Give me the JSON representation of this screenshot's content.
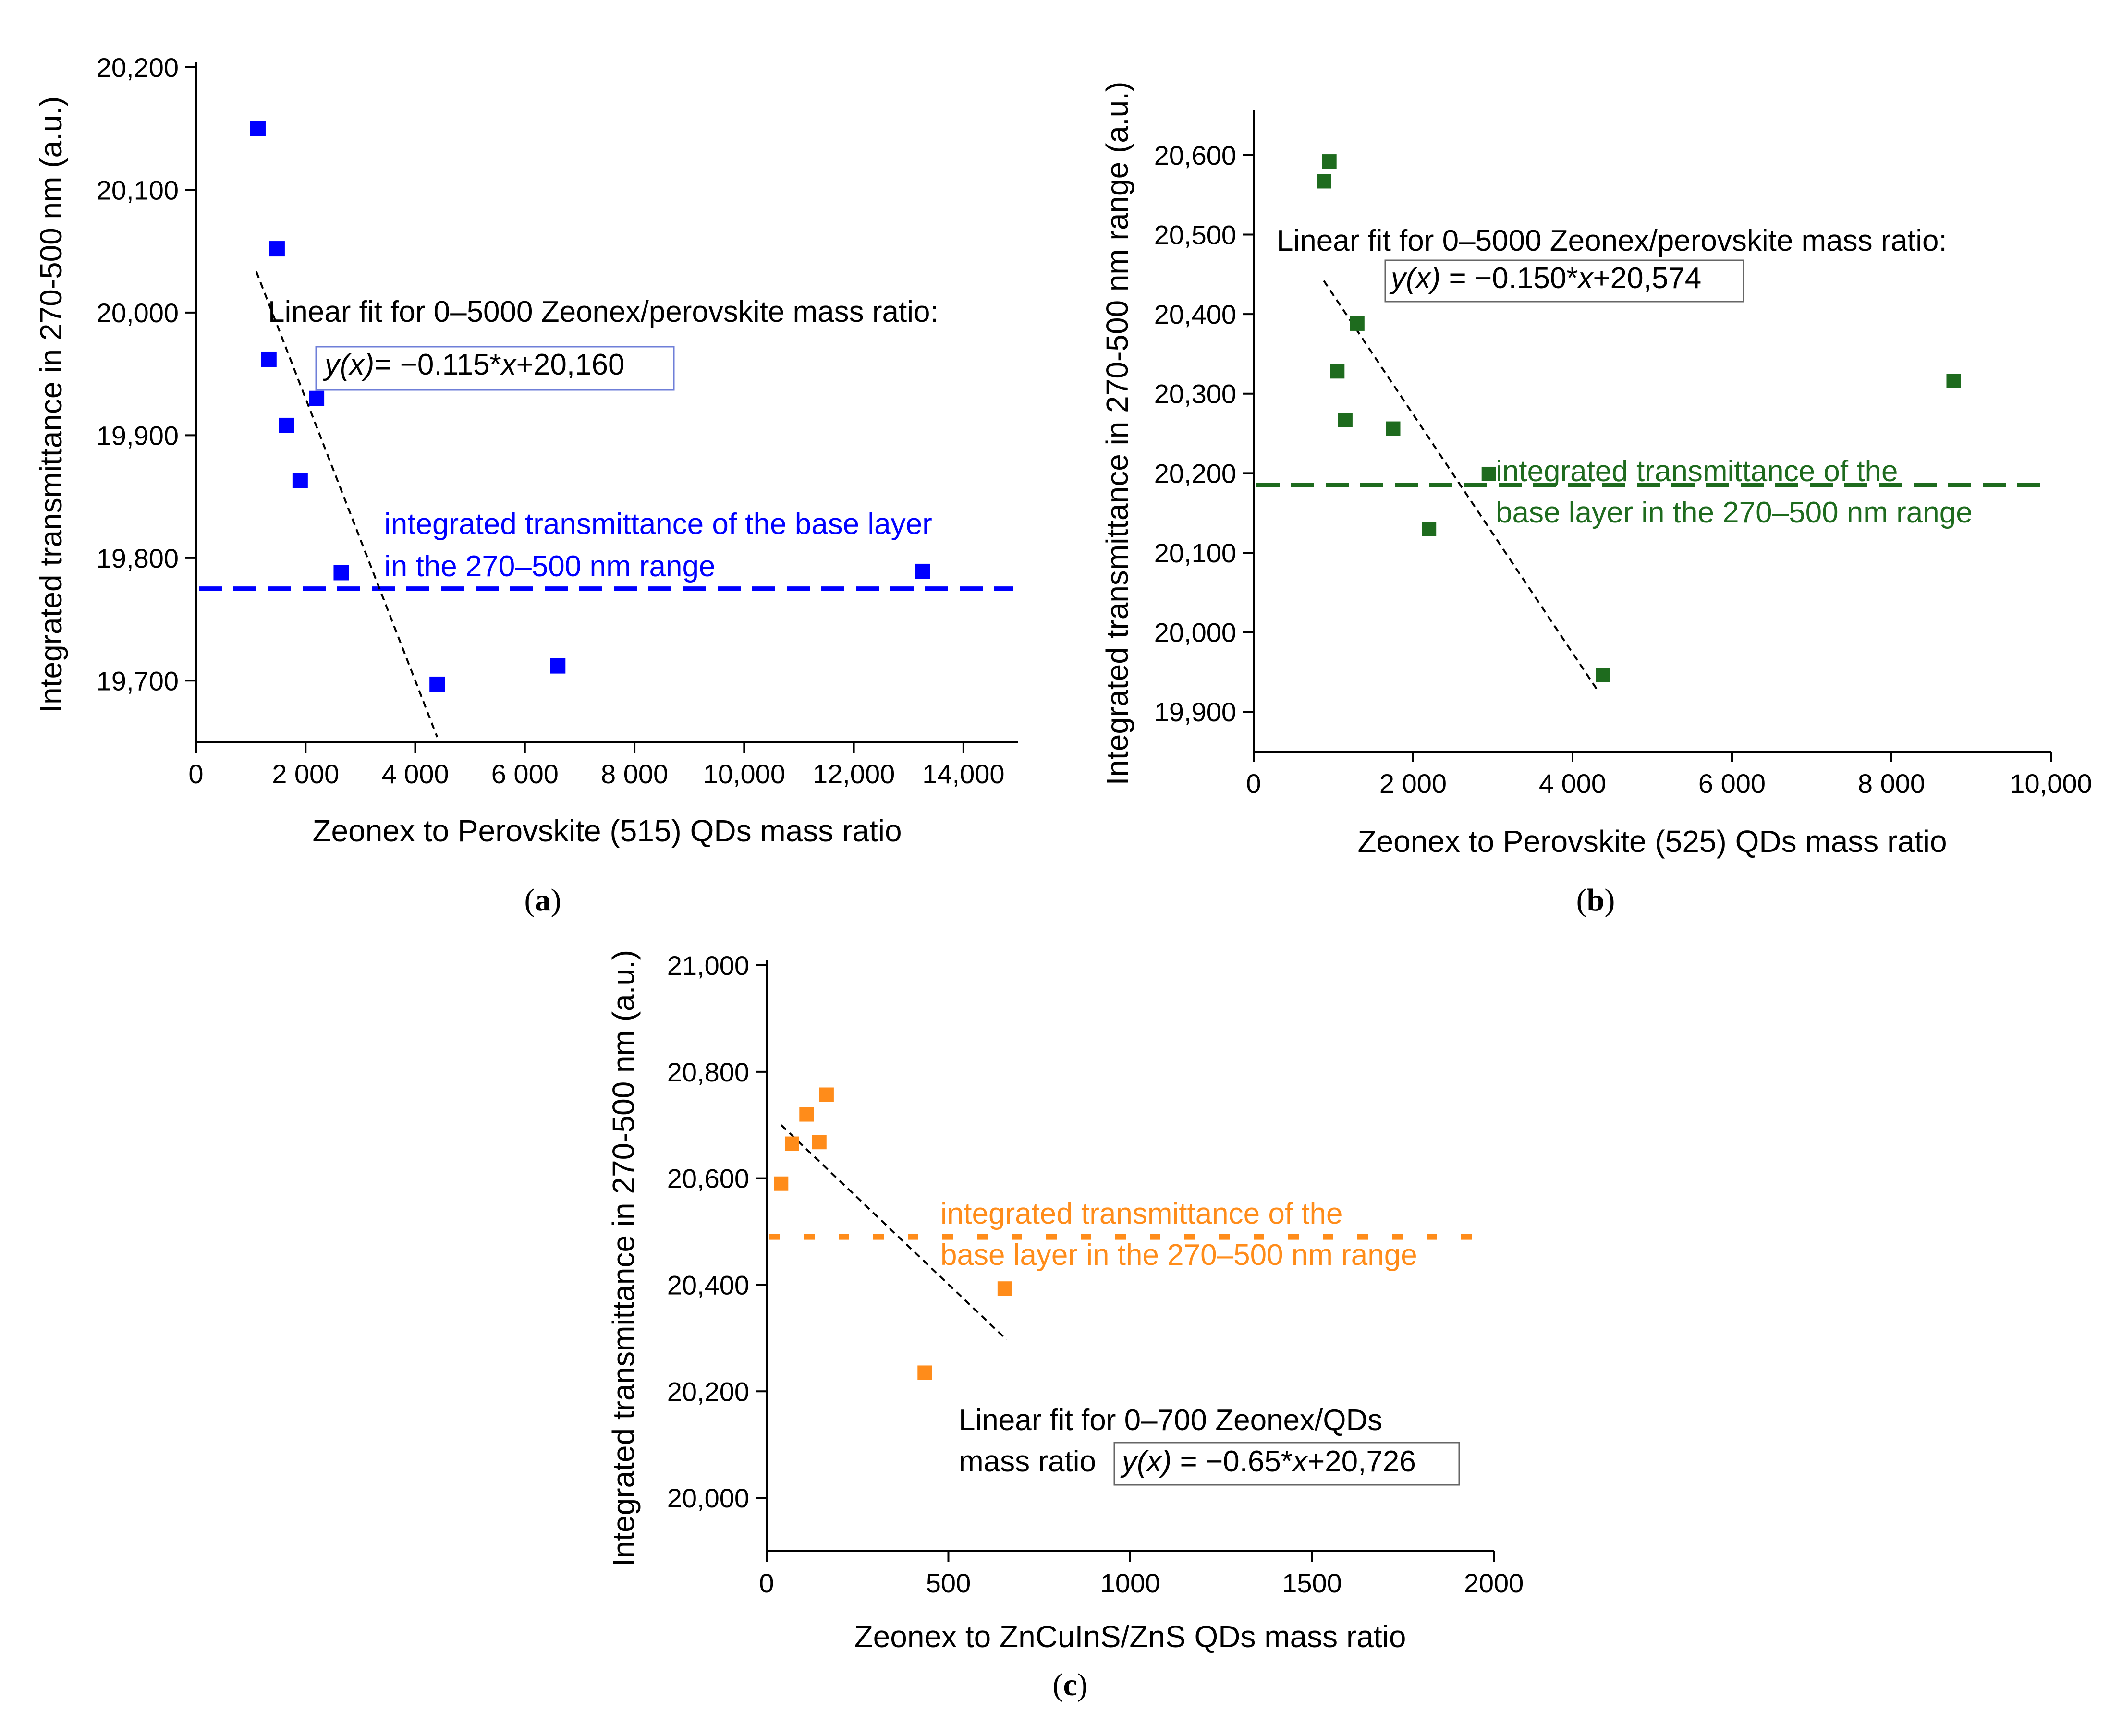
{
  "chart_data": [
    {
      "id": "a",
      "type": "scatter",
      "panel_label": "(a)",
      "panel_letter": "a",
      "xlabel": "Zeonex to Perovskite (515) QDs mass ratio",
      "ylabel": "Integrated transmittance in 270-500 nm (a.u.)",
      "xlim": [
        0,
        15000
      ],
      "ylim": [
        19650,
        20200
      ],
      "x_ticks": [
        0,
        2000,
        4000,
        6000,
        8000,
        10000,
        12000,
        14000
      ],
      "x_tick_labels": [
        "0",
        "2 000",
        "4 000",
        "6 000",
        "8 000",
        "10,000",
        "12,000",
        "14,000"
      ],
      "y_ticks": [
        19700,
        19800,
        19900,
        20000,
        20100,
        20200
      ],
      "y_tick_labels": [
        "19,700",
        "19,800",
        "19,900",
        "20,000",
        "20,100",
        "20,200"
      ],
      "color": "#0000ff",
      "points": [
        {
          "x": 1130,
          "y": 20150
        },
        {
          "x": 1480,
          "y": 20052
        },
        {
          "x": 1330,
          "y": 19962
        },
        {
          "x": 2200,
          "y": 19930
        },
        {
          "x": 1650,
          "y": 19908
        },
        {
          "x": 1900,
          "y": 19863
        },
        {
          "x": 2650,
          "y": 19788
        },
        {
          "x": 4400,
          "y": 19697
        },
        {
          "x": 6600,
          "y": 19712
        },
        {
          "x": 13250,
          "y": 19789
        }
      ],
      "fit": {
        "x_start": 1100,
        "x_end": 4400,
        "slope": -0.115,
        "intercept": 20160
      },
      "baseline": {
        "y": 19775,
        "style": "dashed"
      },
      "fit_label": "Linear fit for 0–5000 Zeonex/perovskite mass ratio:",
      "equation": {
        "y_italic": "y(x)",
        "mid": "= −0.115*",
        "x_italic": "x",
        "end": "+20,160"
      },
      "baseline_label": [
        "integrated transmittance of the base layer",
        "in the 270–500 nm range"
      ]
    },
    {
      "id": "b",
      "type": "scatter",
      "panel_label": "(b)",
      "panel_letter": "b",
      "xlabel": "Zeonex to Perovskite (525) QDs mass ratio",
      "ylabel": "Integrated transmittance in 270-500 nm range (a.u.)",
      "xlim": [
        0,
        10000
      ],
      "ylim": [
        19850,
        20650
      ],
      "x_ticks": [
        0,
        2000,
        4000,
        6000,
        8000,
        10000
      ],
      "x_tick_labels": [
        "0",
        "2 000",
        "4 000",
        "6 000",
        "8 000",
        "10,000"
      ],
      "y_ticks": [
        19900,
        20000,
        20100,
        20200,
        20300,
        20400,
        20500,
        20600
      ],
      "y_tick_labels": [
        "19,900",
        "20,000",
        "20,100",
        "20,200",
        "20,300",
        "20,400",
        "20,500",
        "20,600"
      ],
      "color": "#1e6b1e",
      "points": [
        {
          "x": 880,
          "y": 20567
        },
        {
          "x": 950,
          "y": 20592
        },
        {
          "x": 1300,
          "y": 20388
        },
        {
          "x": 1050,
          "y": 20328
        },
        {
          "x": 1150,
          "y": 20267
        },
        {
          "x": 1750,
          "y": 20256
        },
        {
          "x": 2950,
          "y": 20199
        },
        {
          "x": 2200,
          "y": 20130
        },
        {
          "x": 4380,
          "y": 19946
        },
        {
          "x": 8780,
          "y": 20316
        }
      ],
      "fit": {
        "x_start": 880,
        "x_end": 4300,
        "slope": -0.15,
        "intercept": 20574
      },
      "baseline": {
        "y": 20185,
        "style": "dashed"
      },
      "fit_label": "Linear fit for 0–5000 Zeonex/perovskite mass ratio:",
      "equation": {
        "y_italic": "y(x)",
        "mid": " = −0.150*",
        "x_italic": "x",
        "end": "+20,574"
      },
      "baseline_label": [
        "integrated transmittance of the",
        "base layer in the 270–500 nm range"
      ]
    },
    {
      "id": "c",
      "type": "scatter",
      "panel_label": "(c)",
      "panel_letter": "c",
      "xlabel": "Zeonex to ZnCuInS/ZnS QDs mass ratio",
      "ylabel": "Integrated transmittance in 270-500 nm (a.u.)",
      "xlim": [
        0,
        2000
      ],
      "ylim": [
        19900,
        21000
      ],
      "x_ticks": [
        0,
        500,
        1000,
        1500,
        2000
      ],
      "x_tick_labels": [
        "0",
        "500",
        "1000",
        "1500",
        "2000"
      ],
      "y_ticks": [
        20000,
        20200,
        20400,
        20600,
        20800,
        21000
      ],
      "y_tick_labels": [
        "20,000",
        "20,200",
        "20,400",
        "20,600",
        "20,800",
        "21,000"
      ],
      "color": "#ff8c1a",
      "points": [
        {
          "x": 40,
          "y": 20590
        },
        {
          "x": 70,
          "y": 20665
        },
        {
          "x": 110,
          "y": 20720
        },
        {
          "x": 145,
          "y": 20668
        },
        {
          "x": 165,
          "y": 20757
        },
        {
          "x": 435,
          "y": 20235
        },
        {
          "x": 655,
          "y": 20393
        }
      ],
      "fit": {
        "x_start": 40,
        "x_end": 660,
        "slope": -0.65,
        "intercept": 20726
      },
      "baseline": {
        "y": 20490,
        "style": "dotted"
      },
      "fit_label": [
        "Linear fit for 0–700 Zeonex/QDs",
        "mass ratio"
      ],
      "equation": {
        "y_italic": "y(x)",
        "mid": " = −0.65*",
        "x_italic": "x",
        "end": "+20,726"
      },
      "baseline_label": [
        "integrated transmittance of the",
        "base layer  in the 270–500 nm range"
      ]
    }
  ]
}
